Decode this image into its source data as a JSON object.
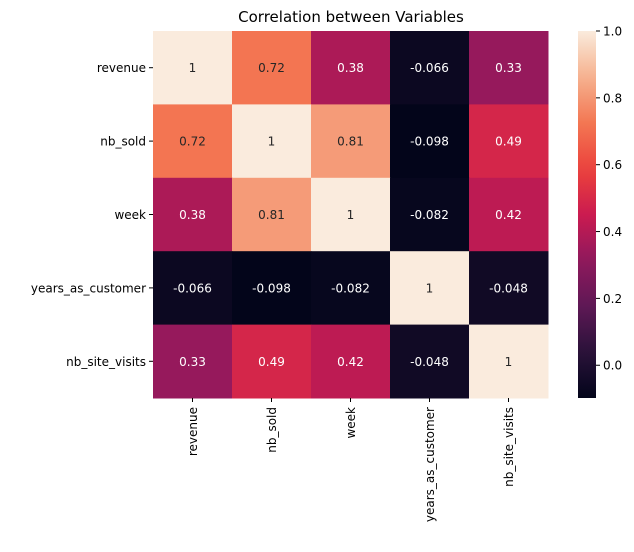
{
  "chart_data": {
    "type": "heatmap",
    "title": "Correlation between Variables",
    "xlabel": "",
    "ylabel": "",
    "x_categories": [
      "revenue",
      "nb_sold",
      "week",
      "years_as_customer",
      "nb_site_visits"
    ],
    "y_categories": [
      "revenue",
      "nb_sold",
      "week",
      "years_as_customer",
      "nb_site_visits"
    ],
    "values": [
      [
        1,
        0.72,
        0.38,
        -0.066,
        0.33
      ],
      [
        0.72,
        1,
        0.81,
        -0.098,
        0.49
      ],
      [
        0.38,
        0.81,
        1,
        -0.082,
        0.42
      ],
      [
        -0.066,
        -0.098,
        -0.082,
        1,
        -0.048
      ],
      [
        0.33,
        0.49,
        0.42,
        -0.048,
        1
      ]
    ],
    "cell_labels": [
      [
        "1",
        "0.72",
        "0.38",
        "-0.066",
        "0.33"
      ],
      [
        "0.72",
        "1",
        "0.81",
        "-0.098",
        "0.49"
      ],
      [
        "0.38",
        "0.81",
        "1",
        "-0.082",
        "0.42"
      ],
      [
        "-0.066",
        "-0.098",
        "-0.082",
        "1",
        "-0.048"
      ],
      [
        "0.33",
        "0.49",
        "0.42",
        "-0.048",
        "1"
      ]
    ],
    "colorbar": {
      "colormap": "rocket",
      "range": [
        -0.098,
        1.0
      ],
      "ticks": [
        0.0,
        0.2,
        0.4,
        0.6,
        0.8,
        1.0
      ],
      "tick_labels": [
        "0.0",
        "0.2",
        "0.4",
        "0.6",
        "0.8",
        "1.0"
      ]
    },
    "grid": false,
    "legend": "colorbar-right"
  }
}
